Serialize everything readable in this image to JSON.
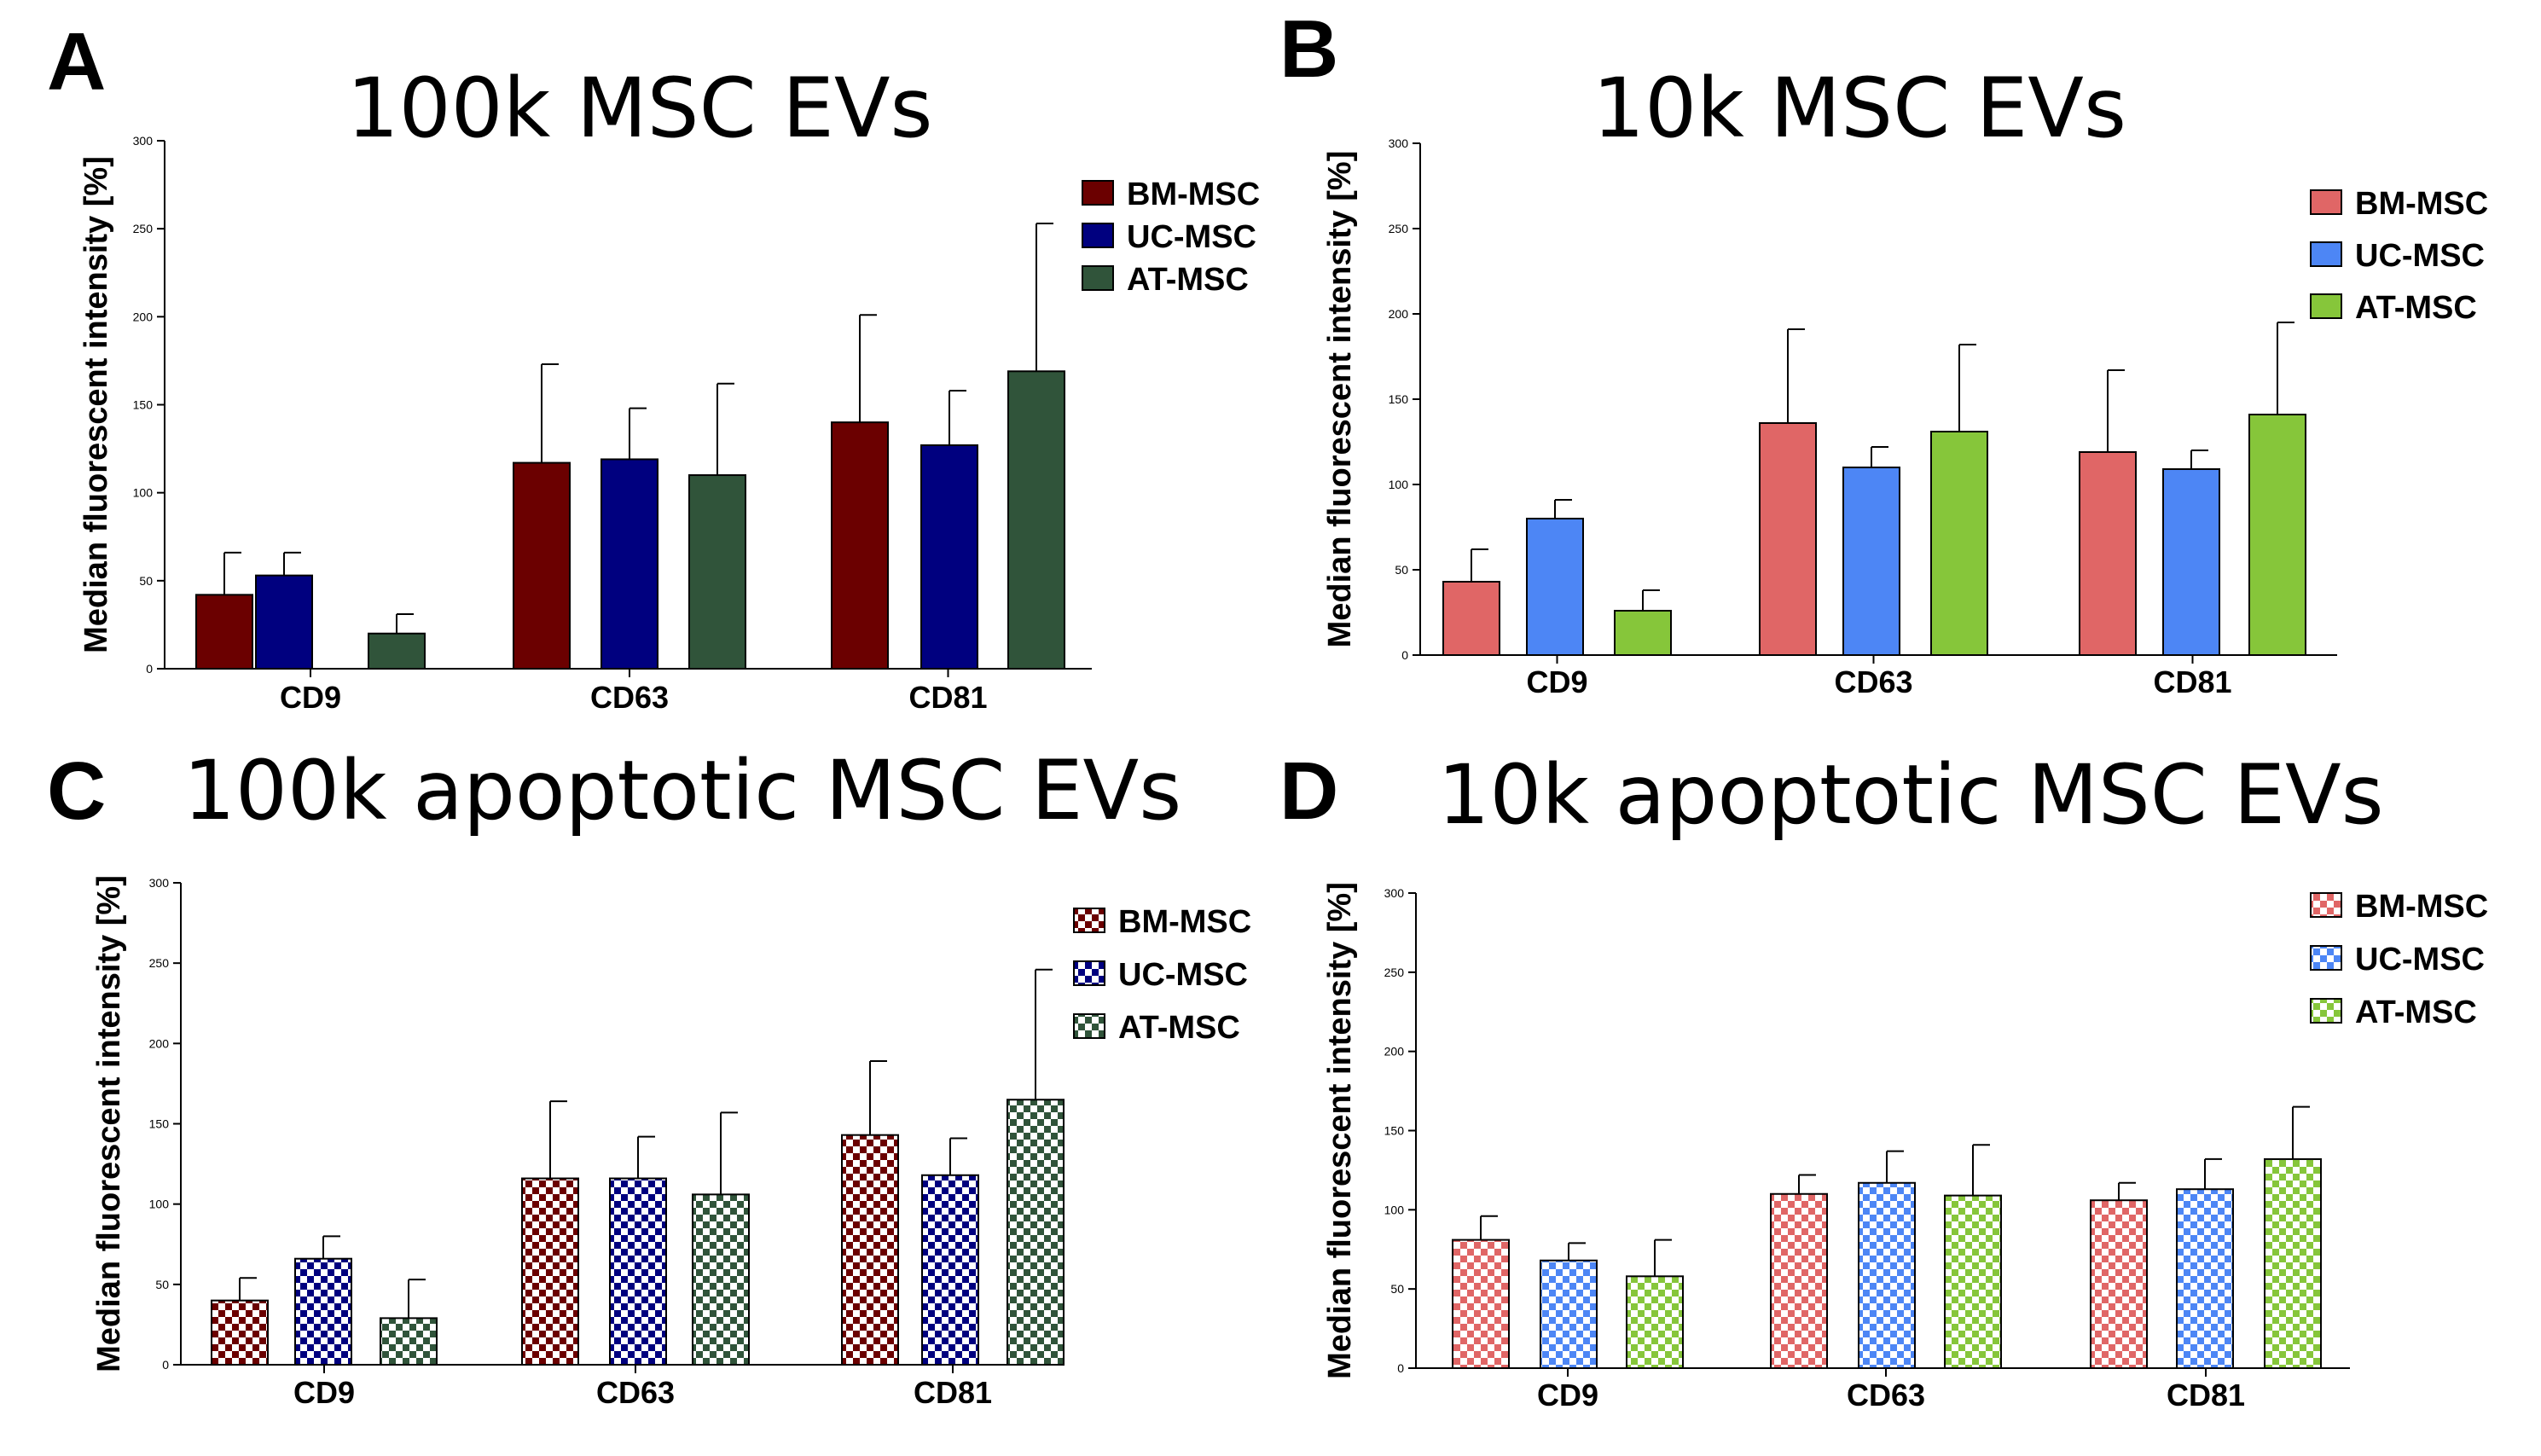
{
  "figure": {
    "colors": {
      "solid_dark": [
        "#6b0000",
        "#00007f",
        "#30543a"
      ],
      "solid_light": [
        "#e06666",
        "#4d86f5",
        "#86c63a"
      ]
    }
  },
  "chart_data": [
    {
      "panel": "A",
      "type": "bar",
      "title": "100k MSC EVs",
      "ylabel": "Median fluorescent intensity [%]",
      "xlabel": "",
      "ylim": [
        0,
        300
      ],
      "yticks": [
        0,
        50,
        100,
        150,
        200,
        250,
        300
      ],
      "categories": [
        "CD9",
        "CD63",
        "CD81"
      ],
      "series": [
        {
          "name": "BM-MSC",
          "values": [
            42,
            117,
            140
          ],
          "errors": [
            24,
            56,
            61
          ]
        },
        {
          "name": "UC-MSC",
          "values": [
            53,
            119,
            127
          ],
          "errors": [
            13,
            29,
            31
          ]
        },
        {
          "name": "AT-MSC",
          "values": [
            20,
            110,
            169
          ],
          "errors": [
            11,
            52,
            84
          ]
        }
      ],
      "legend_position": "top-right",
      "style": "solid",
      "palette": "dark"
    },
    {
      "panel": "B",
      "type": "bar",
      "title": "10k MSC EVs",
      "ylabel": "Median fluorescent intensity [%]",
      "xlabel": "",
      "ylim": [
        0,
        300
      ],
      "yticks": [
        0,
        50,
        100,
        150,
        200,
        250,
        300
      ],
      "categories": [
        "CD9",
        "CD63",
        "CD81"
      ],
      "series": [
        {
          "name": "BM-MSC",
          "values": [
            43,
            136,
            119
          ],
          "errors": [
            19,
            55,
            48
          ]
        },
        {
          "name": "UC-MSC",
          "values": [
            80,
            110,
            109
          ],
          "errors": [
            11,
            12,
            11
          ]
        },
        {
          "name": "AT-MSC",
          "values": [
            26,
            131,
            141
          ],
          "errors": [
            12,
            51,
            54
          ]
        }
      ],
      "legend_position": "top-right",
      "style": "solid",
      "palette": "light"
    },
    {
      "panel": "C",
      "type": "bar",
      "title": "100k apoptotic MSC EVs",
      "ylabel": "Median fluorescent intensity [%]",
      "xlabel": "",
      "ylim": [
        0,
        300
      ],
      "yticks": [
        0,
        50,
        100,
        150,
        200,
        250,
        300
      ],
      "categories": [
        "CD9",
        "CD63",
        "CD81"
      ],
      "series": [
        {
          "name": "BM-MSC",
          "values": [
            40,
            116,
            143
          ],
          "errors": [
            14,
            48,
            46
          ]
        },
        {
          "name": "UC-MSC",
          "values": [
            66,
            116,
            118
          ],
          "errors": [
            14,
            26,
            23
          ]
        },
        {
          "name": "AT-MSC",
          "values": [
            29,
            106,
            165
          ],
          "errors": [
            24,
            51,
            81
          ]
        }
      ],
      "legend_position": "top-right",
      "style": "checkered",
      "palette": "dark"
    },
    {
      "panel": "D",
      "type": "bar",
      "title": "10k apoptotic MSC EVs",
      "ylabel": "Median fluorescent intensity [%]",
      "xlabel": "",
      "ylim": [
        0,
        300
      ],
      "yticks": [
        0,
        50,
        100,
        150,
        200,
        250,
        300
      ],
      "categories": [
        "CD9",
        "CD63",
        "CD81"
      ],
      "series": [
        {
          "name": "BM-MSC",
          "values": [
            81,
            110,
            106
          ],
          "errors": [
            15,
            12,
            11
          ]
        },
        {
          "name": "UC-MSC",
          "values": [
            68,
            117,
            113
          ],
          "errors": [
            11,
            20,
            19
          ]
        },
        {
          "name": "AT-MSC",
          "values": [
            58,
            109,
            132
          ],
          "errors": [
            23,
            32,
            33
          ]
        }
      ],
      "legend_position": "top-right",
      "style": "checkered",
      "palette": "light"
    }
  ]
}
